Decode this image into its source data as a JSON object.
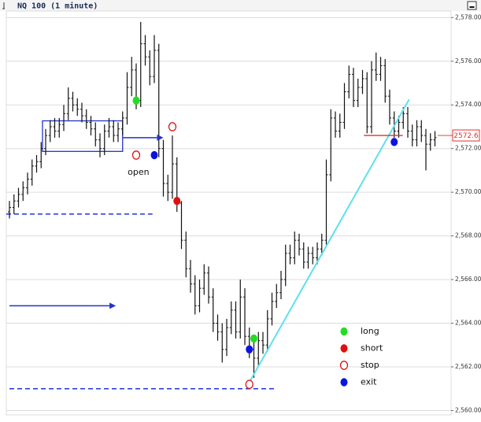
{
  "chart_data": {
    "type": "ohlc",
    "title": "NQ 100 (1 minute)",
    "ylim": [
      2559.8,
      2578.3
    ],
    "yticks": [
      {
        "value": 2560,
        "label": "2,560.00"
      },
      {
        "value": 2562,
        "label": "2,562.00"
      },
      {
        "value": 2564,
        "label": "2,564.00"
      },
      {
        "value": 2566,
        "label": "2,566.00"
      },
      {
        "value": 2568,
        "label": "2,568.00"
      },
      {
        "value": 2570,
        "label": "2,570.00"
      },
      {
        "value": 2572,
        "label": "2,572.00"
      },
      {
        "value": 2574,
        "label": "2,574.00"
      },
      {
        "value": 2576,
        "label": "2,576.00"
      },
      {
        "value": 2578,
        "label": "2,578.00"
      }
    ],
    "grid": true,
    "bar_color": "#111111",
    "open": [
      2569.1,
      2569.3,
      2569.6,
      2569.9,
      2570.2,
      2570.6,
      2571.2,
      2571.4,
      2572.0,
      2572.6,
      2573.0,
      2572.8,
      2573.1,
      2573.6,
      2574.3,
      2574.0,
      2573.8,
      2573.5,
      2573.2,
      2572.9,
      2572.4,
      2572.0,
      2572.8,
      2573.0,
      2572.6,
      2572.9,
      2573.4,
      2574.8,
      2575.6,
      2574.2,
      2576.8,
      2576.2,
      2575.3,
      2576.5,
      2572.0,
      2570.4,
      2570.0,
      2571.3,
      2569.5,
      2567.8,
      2566.5,
      2565.8,
      2564.8,
      2565.6,
      2566.3,
      2565.2,
      2564.0,
      2563.6,
      2562.8,
      2563.8,
      2564.6,
      2563.6,
      2565.2,
      2563.4,
      2562.8,
      2562.4,
      2563.2,
      2563.0,
      2564.2,
      2565.0,
      2565.4,
      2566.0,
      2567.2,
      2567.0,
      2567.8,
      2567.4,
      2566.8,
      2567.2,
      2567.0,
      2567.4,
      2567.8,
      2570.8,
      2573.4,
      2572.8,
      2573.2,
      2574.6,
      2575.4,
      2574.2,
      2574.8,
      2575.2,
      2573.0,
      2575.6,
      2575.4,
      2575.8,
      2574.4,
      2573.4,
      2572.8,
      2573.2,
      2573.6,
      2572.8,
      2572.4,
      2573.0,
      2572.6,
      2572.2,
      2572.4
    ],
    "high": [
      2569.6,
      2569.9,
      2570.2,
      2570.5,
      2570.9,
      2571.5,
      2571.7,
      2572.3,
      2572.9,
      2573.3,
      2573.4,
      2573.4,
      2574.0,
      2574.8,
      2574.6,
      2574.3,
      2574.1,
      2573.8,
      2573.5,
      2573.2,
      2572.7,
      2573.1,
      2573.4,
      2573.3,
      2573.2,
      2573.7,
      2575.5,
      2576.2,
      2575.9,
      2577.8,
      2577.2,
      2576.5,
      2577.2,
      2576.8,
      2572.4,
      2570.8,
      2572.6,
      2571.6,
      2569.6,
      2568.2,
      2566.9,
      2566.2,
      2566.0,
      2566.7,
      2566.6,
      2565.6,
      2564.4,
      2564.0,
      2564.2,
      2565.0,
      2565.0,
      2566.0,
      2565.6,
      2563.8,
      2563.2,
      2563.6,
      2563.6,
      2564.6,
      2565.4,
      2565.8,
      2566.4,
      2567.6,
      2567.6,
      2568.2,
      2568.1,
      2567.7,
      2567.5,
      2567.5,
      2567.7,
      2568.1,
      2571.5,
      2573.8,
      2573.7,
      2573.6,
      2575.0,
      2575.8,
      2575.7,
      2575.2,
      2575.6,
      2575.5,
      2576.0,
      2576.4,
      2576.2,
      2576.1,
      2574.7,
      2573.7,
      2573.5,
      2573.9,
      2573.9,
      2573.1,
      2573.3,
      2573.3,
      2572.9,
      2572.7,
      2572.8
    ],
    "low": [
      2568.8,
      2569.0,
      2569.3,
      2569.6,
      2569.9,
      2570.3,
      2570.9,
      2571.1,
      2571.7,
      2572.3,
      2572.5,
      2572.5,
      2572.8,
      2573.3,
      2573.7,
      2573.5,
      2573.2,
      2572.9,
      2572.6,
      2572.1,
      2571.6,
      2571.7,
      2572.5,
      2572.3,
      2572.3,
      2572.6,
      2573.1,
      2574.4,
      2573.8,
      2573.9,
      2575.8,
      2574.9,
      2575.0,
      2571.6,
      2569.8,
      2569.6,
      2569.7,
      2569.1,
      2567.4,
      2566.1,
      2565.4,
      2564.4,
      2564.5,
      2565.3,
      2564.9,
      2563.6,
      2563.2,
      2562.2,
      2562.5,
      2563.5,
      2563.3,
      2563.3,
      2563.0,
      2562.4,
      2561.5,
      2562.0,
      2562.6,
      2562.7,
      2563.9,
      2564.7,
      2565.1,
      2565.7,
      2566.7,
      2566.7,
      2567.1,
      2566.5,
      2566.5,
      2566.7,
      2566.7,
      2567.1,
      2567.6,
      2570.5,
      2572.5,
      2572.5,
      2572.9,
      2574.3,
      2573.9,
      2573.9,
      2574.5,
      2572.7,
      2572.7,
      2575.1,
      2575.1,
      2574.1,
      2573.1,
      2572.5,
      2572.5,
      2572.9,
      2572.5,
      2572.1,
      2572.1,
      2572.3,
      2571.0,
      2571.9,
      2572.1
    ],
    "close": [
      2569.3,
      2569.6,
      2569.9,
      2570.2,
      2570.6,
      2571.2,
      2571.4,
      2572.0,
      2572.6,
      2573.0,
      2572.8,
      2573.1,
      2573.6,
      2574.3,
      2574.0,
      2573.8,
      2573.5,
      2573.2,
      2572.9,
      2572.4,
      2572.0,
      2572.8,
      2573.0,
      2572.6,
      2572.9,
      2573.4,
      2574.8,
      2575.6,
      2574.2,
      2576.8,
      2576.2,
      2575.3,
      2576.5,
      2572.0,
      2570.4,
      2570.0,
      2571.3,
      2569.5,
      2567.8,
      2566.5,
      2565.8,
      2564.8,
      2565.6,
      2566.3,
      2565.2,
      2564.0,
      2563.6,
      2562.8,
      2563.8,
      2564.6,
      2563.6,
      2565.2,
      2563.4,
      2562.8,
      2562.4,
      2563.2,
      2563.0,
      2564.2,
      2565.0,
      2565.4,
      2566.0,
      2567.2,
      2567.0,
      2567.8,
      2567.4,
      2566.8,
      2567.2,
      2567.0,
      2567.4,
      2567.8,
      2570.8,
      2573.4,
      2572.8,
      2573.2,
      2574.6,
      2575.4,
      2574.2,
      2574.8,
      2575.2,
      2573.0,
      2575.6,
      2575.4,
      2575.8,
      2574.4,
      2573.4,
      2572.8,
      2573.2,
      2573.6,
      2572.8,
      2572.4,
      2573.0,
      2572.6,
      2572.2,
      2572.4,
      2572.5
    ],
    "last_price": 2572.6,
    "last_price_color": "#e03030",
    "signals": [
      {
        "name": "long",
        "color": "#22dd22",
        "filled": true,
        "x": [
          28,
          54
        ],
        "y": [
          2574.2,
          2563.3
        ]
      },
      {
        "name": "short",
        "color": "#e01010",
        "filled": true,
        "x": [
          37
        ],
        "y": [
          2569.6
        ]
      },
      {
        "name": "stop",
        "color": "#e01010",
        "filled": false,
        "x": [
          28,
          36,
          53
        ],
        "y": [
          2571.7,
          2573.0,
          2561.2
        ]
      },
      {
        "name": "exit",
        "color": "#0a14e0",
        "filled": true,
        "x": [
          32,
          53,
          85
        ],
        "y": [
          2571.7,
          2562.8,
          2572.3
        ]
      }
    ],
    "annotations": [
      {
        "text": "open",
        "x": 28.5,
        "y": 2570.9
      }
    ],
    "levels": [
      {
        "x": [
          -0.7,
          31.6
        ],
        "y": 2569.0,
        "color": "#2233dd"
      },
      {
        "x": [
          0,
          59
        ],
        "y": 2561.0,
        "color": "#2233dd"
      }
    ],
    "arrows": [
      {
        "x": [
          25,
          34
        ],
        "y": 2572.5,
        "color": "#2233cc"
      },
      {
        "x": [
          0,
          23.5
        ],
        "y": 2564.8,
        "color": "#2233cc"
      }
    ],
    "box": {
      "x": [
        7.3,
        25
      ],
      "y": [
        2571.87,
        2573.27
      ],
      "color": "#2233cc"
    },
    "trendline": {
      "x": [
        53.2,
        88.3
      ],
      "y": [
        2561.37,
        2574.25
      ],
      "color": "#5ee0ee"
    },
    "last_price_line": {
      "x": [
        78.3,
        86.9
      ]
    }
  }
}
